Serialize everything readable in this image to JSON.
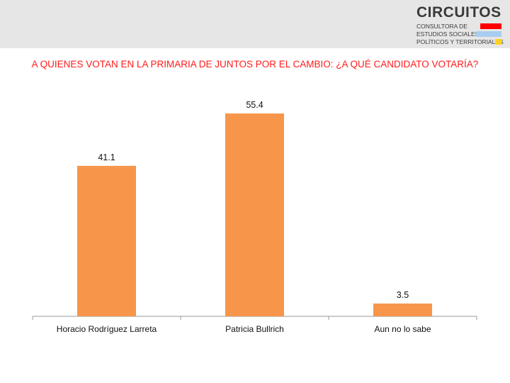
{
  "logo": {
    "name": "CIRCUITOS",
    "line1": "CONSULTORA DE",
    "line2": "ESTUDIOS SOCIALES,",
    "line3": "POLÍTICOS Y TERRITORIALES",
    "colors": [
      "#ff0000",
      "#a9cdf0",
      "#ffd21f"
    ]
  },
  "colors": {
    "title": "#ff1a1a",
    "bar": "#f7964a",
    "axis": "#999999",
    "text": "#111111"
  },
  "chart_data": {
    "type": "bar",
    "title": "A QUIENES VOTAN EN LA PRIMARIA DE JUNTOS POR EL CAMBIO: ¿A QUÉ CANDIDATO VOTARÍA?",
    "categories": [
      "Horacio Rodríguez Larreta",
      "Patricia Bullrich",
      "Aun no lo sabe"
    ],
    "values": [
      41.1,
      55.4,
      3.5
    ],
    "data_labels": [
      "41.1",
      "55.4",
      "3.5"
    ],
    "xlabel": "",
    "ylabel": "",
    "ylim": [
      0,
      60
    ],
    "grid": false,
    "legend": "none"
  }
}
